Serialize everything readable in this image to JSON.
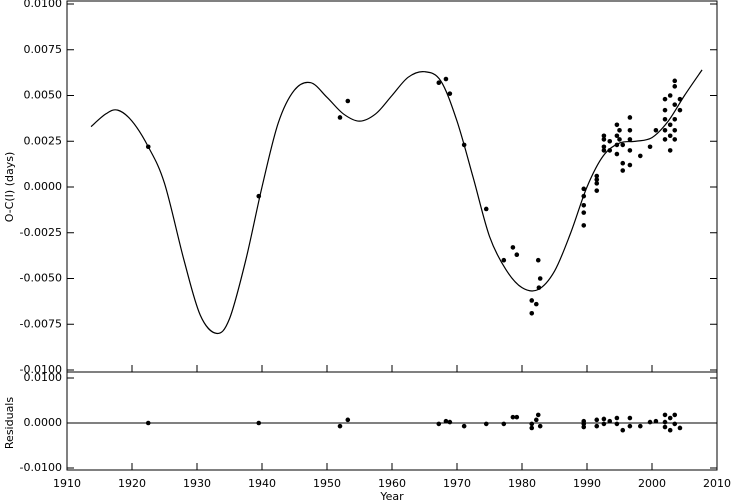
{
  "chart_data": [
    {
      "type": "scatter",
      "ylabel": "O-C(I) (days)",
      "xlim": [
        1910,
        2010
      ],
      "ylim": [
        -0.01,
        0.01
      ],
      "color": "#000000",
      "yticks": [
        {
          "value": -0.01,
          "label": "-0.0100"
        },
        {
          "value": -0.0075,
          "label": "-0.0075"
        },
        {
          "value": -0.005,
          "label": "-0.0050"
        },
        {
          "value": -0.0025,
          "label": "-0.0025"
        },
        {
          "value": 0,
          "label": "0.0000"
        },
        {
          "value": 0.0025,
          "label": "0.0025"
        },
        {
          "value": 0.005,
          "label": "0.0050"
        },
        {
          "value": 0.0075,
          "label": "0.0075"
        },
        {
          "value": 0.01,
          "label": "0.0100"
        }
      ],
      "points": {
        "x": [
          1922.5,
          1939.5,
          1952.0,
          1953.2,
          1967.2,
          1968.3,
          1968.9,
          1971.1,
          1974.5,
          1977.2,
          1978.6,
          1979.2,
          1981.5,
          1981.5,
          1982.2,
          1982.5,
          1982.6,
          1982.8,
          1989.5,
          1989.5,
          1989.5,
          1989.5,
          1989.5,
          1991.5,
          1991.5,
          1991.5,
          1991.5,
          1992.6,
          1992.6,
          1992.6,
          1992.6,
          1993.5,
          1993.5,
          1994.6,
          1994.6,
          1994.6,
          1994.6,
          1995.0,
          1995.0,
          1995.5,
          1995.5,
          1995.5,
          1996.6,
          1996.6,
          1996.6,
          1996.6,
          1996.6,
          1998.2,
          1999.7,
          2000.6,
          2002.0,
          2002.0,
          2002.0,
          2002.0,
          2002.0,
          2002.8,
          2002.8,
          2002.8,
          2002.8,
          2003.5,
          2003.5,
          2003.5,
          2003.5,
          2003.5,
          2003.5,
          2004.3,
          2004.3
        ],
        "y": [
          0.0022,
          -0.0005,
          0.0038,
          0.0047,
          0.0057,
          0.0059,
          0.0051,
          0.0023,
          -0.0012,
          -0.004,
          -0.0033,
          -0.0037,
          -0.0062,
          -0.0069,
          -0.0064,
          -0.004,
          -0.0055,
          -0.005,
          -0.0001,
          -0.0005,
          -0.001,
          -0.0014,
          -0.0021,
          0.0006,
          0.0004,
          0.0002,
          -0.0002,
          0.0028,
          0.0026,
          0.0022,
          0.002,
          0.0025,
          0.002,
          0.0034,
          0.0028,
          0.0023,
          0.0018,
          0.0031,
          0.0026,
          0.0023,
          0.0009,
          0.0013,
          0.0038,
          0.0031,
          0.0026,
          0.002,
          0.0012,
          0.0017,
          0.0022,
          0.0031,
          0.0048,
          0.0042,
          0.0037,
          0.0031,
          0.0026,
          0.005,
          0.0034,
          0.0028,
          0.002,
          0.0058,
          0.0055,
          0.0045,
          0.0037,
          0.0031,
          0.0026,
          0.0048,
          0.0042
        ]
      },
      "curve": {
        "x": [
          1913.7,
          1916,
          1917.8,
          1920,
          1922.5,
          1925,
          1928,
          1930.5,
          1933,
          1935,
          1937.5,
          1940,
          1942.5,
          1945,
          1947.5,
          1950,
          1952.5,
          1955,
          1957.5,
          1960,
          1962.5,
          1965,
          1967.5,
          1970,
          1972.5,
          1975,
          1977.5,
          1980,
          1982.5,
          1985,
          1987.5,
          1990,
          1992.5,
          1995,
          1997.5,
          2000,
          2002.5,
          2005,
          2007.7
        ],
        "y": [
          0.0033,
          0.004,
          0.0042,
          0.0036,
          0.0022,
          0.0002,
          -0.004,
          -0.007,
          -0.008,
          -0.0072,
          -0.004,
          0.0,
          0.0035,
          0.0053,
          0.0057,
          0.0049,
          0.004,
          0.0036,
          0.004,
          0.005,
          0.006,
          0.0063,
          0.0058,
          0.0036,
          0.0005,
          -0.0027,
          -0.0045,
          -0.0055,
          -0.0056,
          -0.0046,
          -0.0025,
          0.0,
          0.0017,
          0.0024,
          0.0025,
          0.0027,
          0.0036,
          0.005,
          0.0064
        ]
      }
    },
    {
      "type": "scatter",
      "ylabel": "Residuals",
      "xlabel": "Year",
      "xlim": [
        1910,
        2010
      ],
      "ylim": [
        -0.01,
        0.01
      ],
      "color": "#000000",
      "hline": 0,
      "xticks": [
        1910,
        1920,
        1930,
        1940,
        1950,
        1960,
        1970,
        1980,
        1990,
        2000,
        2010
      ],
      "yticks": [
        {
          "value": -0.01,
          "label": "-0.0100"
        },
        {
          "value": 0,
          "label": "0.0000"
        },
        {
          "value": 0.01,
          "label": "0.0100"
        }
      ],
      "points": {
        "x": [
          1922.5,
          1939.5,
          1952.0,
          1953.2,
          1967.2,
          1968.3,
          1968.9,
          1971.1,
          1974.5,
          1977.2,
          1978.6,
          1979.2,
          1981.5,
          1981.5,
          1982.2,
          1982.5,
          1982.8,
          1989.5,
          1989.5,
          1989.5,
          1991.5,
          1991.5,
          1992.6,
          1992.6,
          1993.5,
          1994.6,
          1994.6,
          1995.5,
          1996.6,
          1996.6,
          1998.2,
          1999.7,
          2000.6,
          2002.0,
          2002.0,
          2002.0,
          2002.8,
          2002.8,
          2003.5,
          2003.5,
          2004.3
        ],
        "y": [
          0,
          0,
          -0.0007,
          0.0007,
          -0.0002,
          0.0004,
          0.0002,
          -0.0007,
          -0.0002,
          -0.0002,
          0.0013,
          0.0013,
          -0.0002,
          -0.0011,
          0.0007,
          0.0018,
          -0.0007,
          0.0004,
          -0.0002,
          -0.0009,
          0.0007,
          -0.0007,
          0.0009,
          -0.0002,
          0.0004,
          0.0011,
          -0.0002,
          -0.0016,
          0.0011,
          -0.0007,
          -0.0007,
          0.0002,
          0.0004,
          0.0018,
          0.0002,
          -0.0009,
          0.0011,
          -0.0016,
          0.0018,
          -0.0002,
          -0.0011
        ]
      }
    }
  ]
}
